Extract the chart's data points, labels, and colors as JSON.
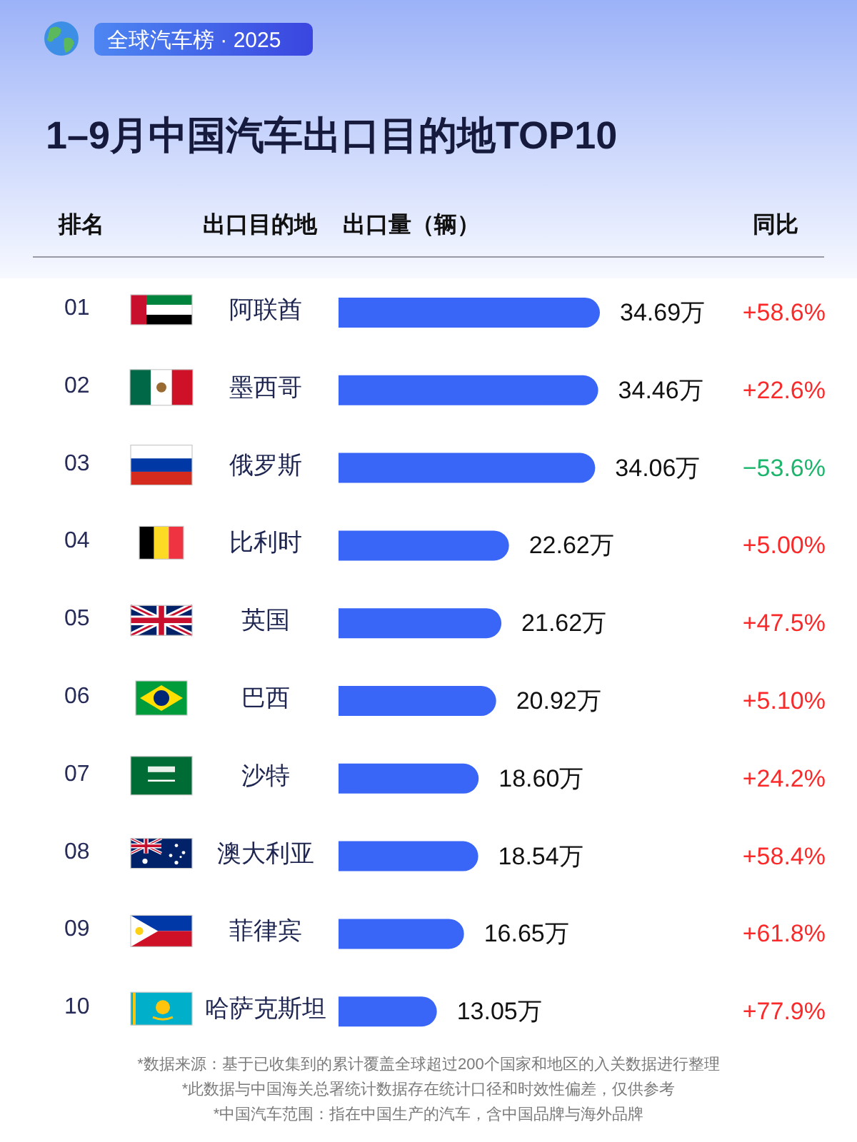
{
  "chart_data": [
    {
      "type": "bar",
      "orientation": "horizontal",
      "title": "1–9月中国汽车出口目的地TOP10",
      "subtitle": "全球汽车榜 · 2025",
      "xlabel": "出口量（辆）",
      "ylabel": "出口目的地",
      "categories": [
        "阿联酋",
        "墨西哥",
        "俄罗斯",
        "比利时",
        "英国",
        "巴西",
        "沙特",
        "澳大利亚",
        "菲律宾",
        "哈萨克斯坦"
      ],
      "color": "#3966f6",
      "values": [
        34.69,
        34.46,
        34.06,
        22.62,
        21.62,
        20.92,
        18.6,
        18.54,
        16.65,
        13.05
      ],
      "value_labels": [
        "34.69万",
        "34.46万",
        "34.06万",
        "22.62万",
        "21.62万",
        "20.92万",
        "18.60万",
        "18.54万",
        "16.65万",
        "13.05万"
      ],
      "annotations": [
        "排名",
        "01",
        "02",
        "03",
        "04",
        "05",
        "06",
        "07",
        "08",
        "09",
        "10",
        "*数据来源：基于已收集到的累计覆盖全球超过200个国家和地区的入关数据进行整理",
        "*此数据与中国海关总署统计数据存在统计口径和时效性偏差，仅供参考",
        "*中国汽车范围：指在中国生产的汽车，含中国品牌与海外品牌"
      ]
    },
    {
      "type": "other",
      "title": "同比",
      "values": [
        58.6,
        22.6,
        -53.6,
        5.0,
        47.5,
        5.1,
        24.2,
        58.4,
        61.8,
        77.9
      ],
      "value_labels": [
        "+58.6%",
        "+22.6%",
        "−53.6%",
        "+5.00%",
        "+47.5%",
        "+5.10%",
        "+24.2%",
        "+58.4%",
        "+61.8%",
        "+77.9%"
      ],
      "colors": [
        "#fa2a2a",
        "#fa2a2a",
        "#1db56c",
        "#fa2a2a",
        "#fa2a2a",
        "#fa2a2a",
        "#fa2a2a",
        "#fa2a2a",
        "#fa2a2a",
        "#fa2a2a"
      ]
    }
  ]
}
